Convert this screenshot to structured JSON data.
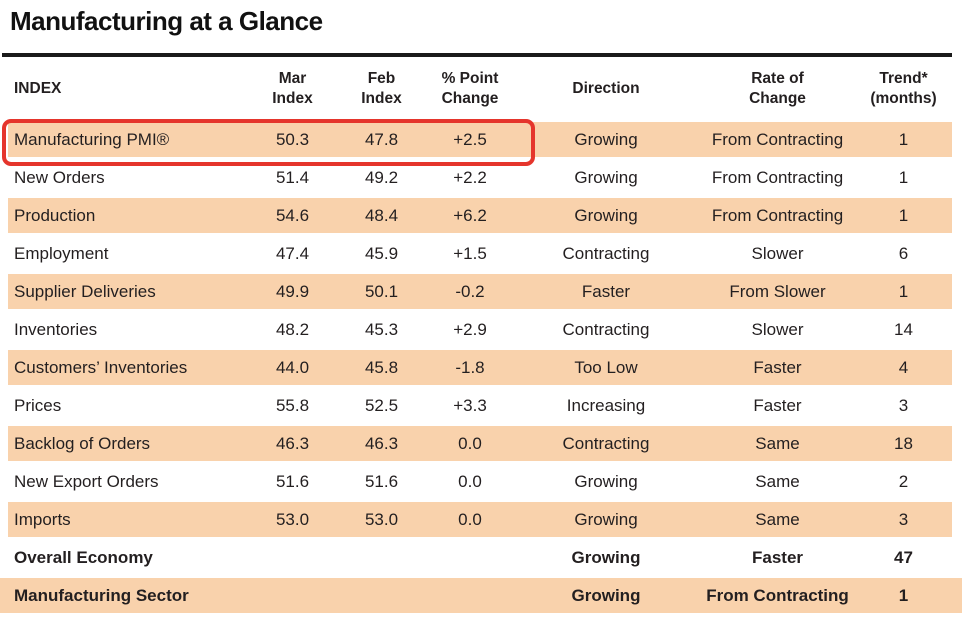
{
  "title": "Manufacturing at a Glance",
  "colors": {
    "row_shade": "#F9D2AC",
    "highlight_border": "#E5352C",
    "text": "#231F20"
  },
  "table": {
    "columns": [
      {
        "label": "INDEX"
      },
      {
        "label": "Mar\nIndex"
      },
      {
        "label": "Feb\nIndex"
      },
      {
        "label": "% Point\nChange"
      },
      {
        "label": "Direction"
      },
      {
        "label": "Rate of\nChange"
      },
      {
        "label": "Trend*\n(months)"
      }
    ],
    "rows": [
      {
        "index": "Manufacturing PMI®",
        "mar": "50.3",
        "feb": "47.8",
        "change": "+2.5",
        "direction": "Growing",
        "rate": "From Contracting",
        "trend": "1",
        "highlighted": true
      },
      {
        "index": "New Orders",
        "mar": "51.4",
        "feb": "49.2",
        "change": "+2.2",
        "direction": "Growing",
        "rate": "From Contracting",
        "trend": "1"
      },
      {
        "index": "Production",
        "mar": "54.6",
        "feb": "48.4",
        "change": "+6.2",
        "direction": "Growing",
        "rate": "From Contracting",
        "trend": "1"
      },
      {
        "index": "Employment",
        "mar": "47.4",
        "feb": "45.9",
        "change": "+1.5",
        "direction": "Contracting",
        "rate": "Slower",
        "trend": "6"
      },
      {
        "index": "Supplier Deliveries",
        "mar": "49.9",
        "feb": "50.1",
        "change": "-0.2",
        "direction": "Faster",
        "rate": "From Slower",
        "trend": "1"
      },
      {
        "index": "Inventories",
        "mar": "48.2",
        "feb": "45.3",
        "change": "+2.9",
        "direction": "Contracting",
        "rate": "Slower",
        "trend": "14"
      },
      {
        "index": "Customers’ Inventories",
        "mar": "44.0",
        "feb": "45.8",
        "change": "-1.8",
        "direction": "Too Low",
        "rate": "Faster",
        "trend": "4"
      },
      {
        "index": "Prices",
        "mar": "55.8",
        "feb": "52.5",
        "change": "+3.3",
        "direction": "Increasing",
        "rate": "Faster",
        "trend": "3"
      },
      {
        "index": "Backlog of Orders",
        "mar": "46.3",
        "feb": "46.3",
        "change": "0.0",
        "direction": "Contracting",
        "rate": "Same",
        "trend": "18"
      },
      {
        "index": "New Export Orders",
        "mar": "51.6",
        "feb": "51.6",
        "change": "0.0",
        "direction": "Growing",
        "rate": "Same",
        "trend": "2"
      },
      {
        "index": "Imports",
        "mar": "53.0",
        "feb": "53.0",
        "change": "0.0",
        "direction": "Growing",
        "rate": "Same",
        "trend": "3"
      },
      {
        "index": "Overall Economy",
        "mar": "",
        "feb": "",
        "change": "",
        "direction": "Growing",
        "rate": "Faster",
        "trend": "47",
        "emphasis": true
      },
      {
        "index": "Manufacturing Sector",
        "mar": "",
        "feb": "",
        "change": "",
        "direction": "Growing",
        "rate": "From Contracting",
        "trend": "1",
        "emphasis": true,
        "full_bleed": true
      }
    ]
  }
}
